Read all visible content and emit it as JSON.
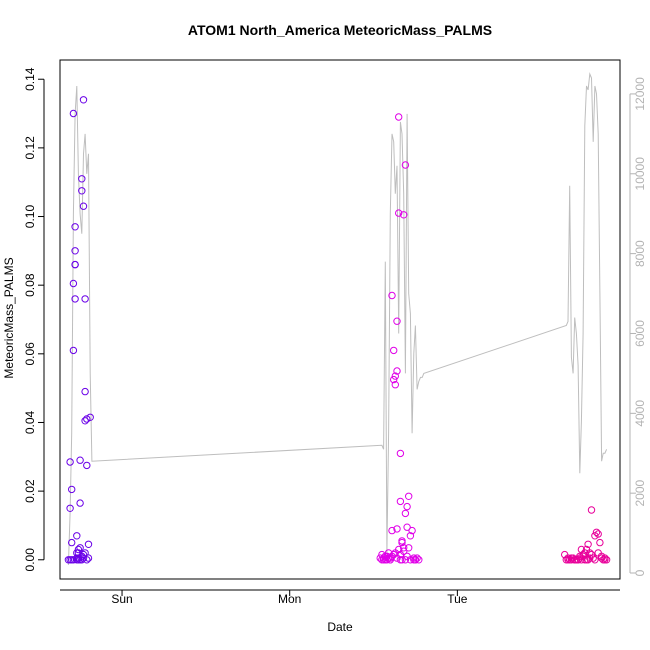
{
  "chart_data": {
    "type": "scatter",
    "title": "ATOM1 North_America MeteoricMass_PALMS",
    "xlabel": "Date",
    "ylabel": "MeteoricMass_PALMS",
    "x_tick_labels": [
      "Sun",
      "Mon",
      "Tue"
    ],
    "x_ticks_days": [
      1,
      2,
      3
    ],
    "xlim_days": [
      0.63,
      3.97
    ],
    "ylim": [
      -0.0056,
      0.1456
    ],
    "y_ticks": [
      "0.00",
      "0.02",
      "0.04",
      "0.06",
      "0.08",
      "0.10",
      "0.12",
      "0.14"
    ],
    "y_tick_values": [
      0,
      0.02,
      0.04,
      0.06,
      0.08,
      0.1,
      0.12,
      0.14
    ],
    "y2_ticks": [
      "0",
      "2000",
      "4000",
      "6000",
      "8000",
      "10000",
      "12000"
    ],
    "y2_tick_values": [
      0,
      2000,
      4000,
      6000,
      8000,
      10000,
      12000
    ],
    "y2lim": [
      -150,
      12850
    ],
    "grid": false,
    "colors": {
      "series_sat": "#6a00e8",
      "series_mon": "#e000e8",
      "series_tue": "#e8009a",
      "altitude_line": "#bebebe",
      "axis": "#000000",
      "right_axis": "#b3b3b3"
    },
    "series": [
      {
        "x": [
          0.68,
          0.69,
          0.69,
          0.7,
          0.7,
          0.71,
          0.72,
          0.71,
          0.72,
          0.72,
          0.73,
          0.73,
          0.74,
          0.74,
          0.75,
          0.75,
          0.76,
          0.76,
          0.77,
          0.77,
          0.78,
          0.78,
          0.79,
          0.79,
          0.8,
          0.8,
          0.81,
          0.69,
          0.71,
          0.74,
          0.77,
          0.76,
          0.78,
          0.72,
          0.73,
          0.75,
          0.76,
          0.77,
          0.78,
          0.74,
          0.73,
          0.72,
          0.75,
          0.7,
          0.71,
          0.79
        ],
        "y": [
          0.0,
          0.015,
          0.0285,
          0.0205,
          0.005,
          0.13,
          0.09,
          0.0805,
          0.086,
          0.097,
          0.007,
          0.0005,
          0.002,
          0.003,
          0.029,
          0.0165,
          0.1075,
          0.111,
          0.134,
          0.103,
          0.076,
          0.049,
          0.041,
          0.0275,
          0.0005,
          0.0045,
          0.0415,
          0.0,
          0.061,
          0.0,
          0.0005,
          0.0,
          0.002,
          0.076,
          0.002,
          0.0,
          0.001,
          0.0015,
          0.0405,
          0.0005,
          0.0,
          0.086,
          0.0035,
          0.0,
          0.0,
          0.0
        ]
      },
      {
        "x": [
          2.54,
          2.55,
          2.55,
          2.56,
          2.56,
          2.57,
          2.58,
          2.59,
          2.59,
          2.6,
          2.6,
          2.61,
          2.61,
          2.62,
          2.62,
          2.63,
          2.63,
          2.64,
          2.64,
          2.65,
          2.65,
          2.66,
          2.66,
          2.67,
          2.67,
          2.68,
          2.68,
          2.69,
          2.69,
          2.7,
          2.7,
          2.71,
          2.72,
          2.73,
          2.74,
          2.75,
          2.76,
          2.77,
          2.62,
          2.63,
          2.64,
          2.65,
          2.66,
          2.6,
          2.61,
          2.57,
          2.58,
          2.59,
          2.71,
          2.72,
          2.74,
          2.75,
          2.66,
          2.67,
          2.68,
          2.69,
          2.64,
          2.7
        ],
        "y": [
          0.0005,
          0.0,
          0.0015,
          0.0,
          0.0005,
          0.001,
          0.0,
          0.002,
          0.0005,
          0.0,
          0.0005,
          0.0085,
          0.077,
          0.061,
          0.0525,
          0.051,
          0.0535,
          0.055,
          0.0695,
          0.129,
          0.101,
          0.031,
          0.017,
          0.0055,
          0.005,
          0.0025,
          0.1005,
          0.115,
          0.0135,
          0.0095,
          0.0155,
          0.0185,
          0.0,
          0.0085,
          0.0,
          0.0,
          0.0005,
          0.0,
          0.0015,
          0.002,
          0.0005,
          0.003,
          0.0,
          0.0,
          0.001,
          0.0,
          0.001,
          0.0005,
          0.0035,
          0.007,
          0.0005,
          0.0,
          0.0015,
          0.0,
          0.0035,
          0.0,
          0.009,
          0.001
        ]
      },
      {
        "x": [
          3.64,
          3.65,
          3.66,
          3.67,
          3.68,
          3.69,
          3.7,
          3.71,
          3.72,
          3.73,
          3.74,
          3.75,
          3.76,
          3.77,
          3.78,
          3.79,
          3.8,
          3.81,
          3.82,
          3.83,
          3.84,
          3.85,
          3.86,
          3.87,
          3.88,
          3.89,
          3.66,
          3.68,
          3.7,
          3.72,
          3.74,
          3.76,
          3.78,
          3.8,
          3.82,
          3.84,
          3.86,
          3.88,
          3.71,
          3.73,
          3.75,
          3.77,
          3.79
        ],
        "y": [
          0.0015,
          0.0,
          0.0005,
          0.0,
          0.0,
          0.0005,
          0.0,
          0.0,
          0.0,
          0.0005,
          0.0,
          0.001,
          0.0,
          0.003,
          0.0045,
          0.0005,
          0.0015,
          0.0005,
          0.0,
          0.008,
          0.0075,
          0.005,
          0.001,
          0.0,
          0.0005,
          0.0,
          0.0,
          0.0005,
          0.0,
          0.0,
          0.003,
          0.002,
          0.0,
          0.0145,
          0.007,
          0.002,
          0.0005,
          0.0,
          0.0,
          0.001,
          0.0015,
          0.0,
          0.002
        ]
      }
    ],
    "altitude_line": {
      "x": [
        0.68,
        0.69,
        0.7,
        0.71,
        0.72,
        0.73,
        0.74,
        0.75,
        0.76,
        0.77,
        0.78,
        0.79,
        0.8,
        0.81,
        0.82,
        2.55,
        2.56,
        2.57,
        2.58,
        2.59,
        2.6,
        2.61,
        2.62,
        2.63,
        2.64,
        2.65,
        2.66,
        2.67,
        2.68,
        2.69,
        2.7,
        2.71,
        2.72,
        2.73,
        2.74,
        2.75,
        2.76,
        2.77,
        2.78,
        2.79,
        2.8,
        3.65,
        3.66,
        3.67,
        3.68,
        3.69,
        3.7,
        3.71,
        3.72,
        3.73,
        3.74,
        3.75,
        3.76,
        3.77,
        3.78,
        3.79,
        3.8,
        3.81,
        3.82,
        3.83,
        3.84,
        3.85,
        3.86,
        3.87,
        3.88,
        3.89
      ],
      "y": [
        200,
        1500,
        3500,
        9000,
        11500,
        12200,
        10000,
        9000,
        8500,
        10500,
        11000,
        10000,
        10500,
        5000,
        2800,
        3200,
        3100,
        7800,
        500,
        3500,
        9000,
        11000,
        10800,
        9500,
        10200,
        6000,
        11300,
        11000,
        9500,
        5000,
        11500,
        7000,
        6500,
        3500,
        5500,
        6200,
        4600,
        4800,
        4900,
        4900,
        5000,
        6200,
        6300,
        9700,
        5400,
        5000,
        6400,
        6000,
        5200,
        2500,
        3800,
        6000,
        11200,
        12200,
        12100,
        12500,
        12400,
        10800,
        12200,
        12000,
        11000,
        7000,
        2800,
        3000,
        3000,
        3100
      ]
    }
  }
}
